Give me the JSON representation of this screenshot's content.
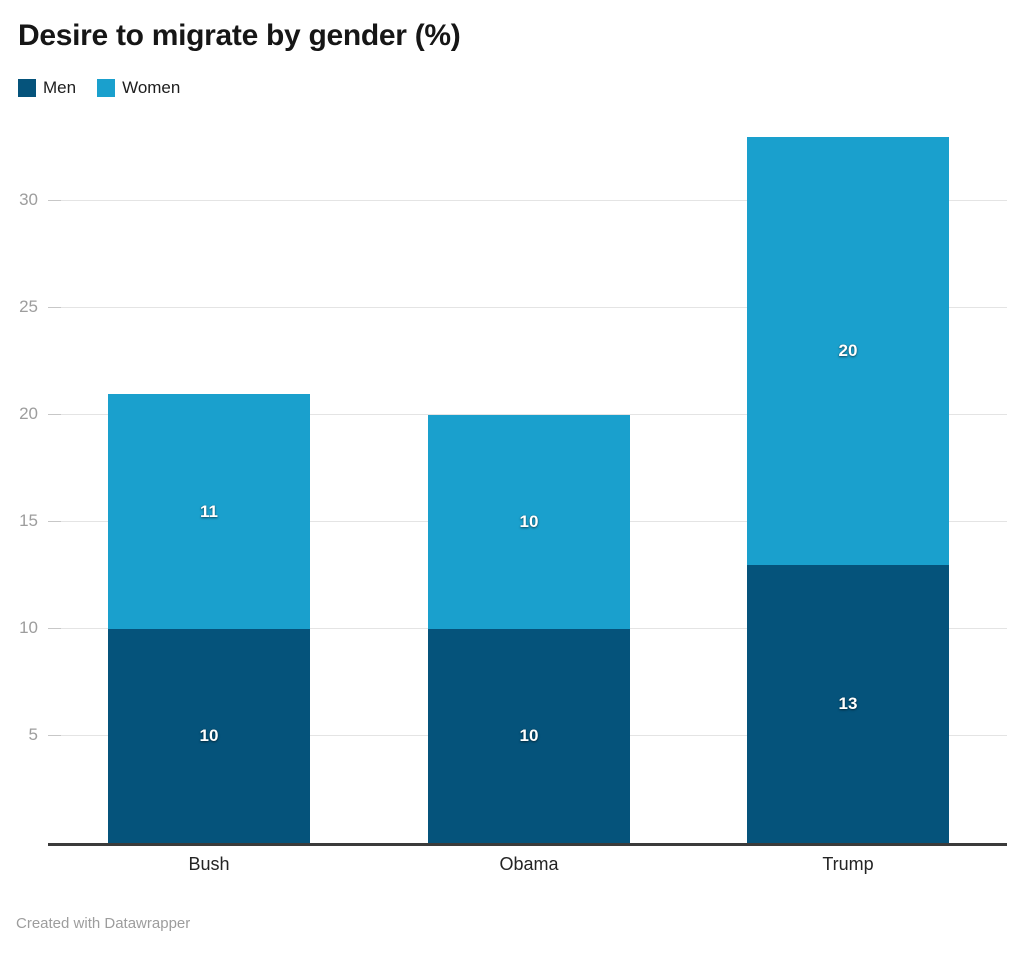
{
  "title": "Desire to migrate by gender (%)",
  "legend": {
    "items": [
      {
        "label": "Men",
        "color": "#05537b"
      },
      {
        "label": "Women",
        "color": "#1aa0cd"
      }
    ]
  },
  "footer": {
    "attribution": "Created with Datawrapper"
  },
  "chart_data": {
    "type": "bar",
    "stacked": true,
    "title": "Desire to migrate by gender (%)",
    "categories": [
      "Bush",
      "Obama",
      "Trump"
    ],
    "series": [
      {
        "name": "Men",
        "color": "#05537b",
        "values": [
          10,
          10,
          13
        ]
      },
      {
        "name": "Women",
        "color": "#1aa0cd",
        "values": [
          11,
          10,
          20
        ]
      }
    ],
    "value_labels_shown": true,
    "xlabel": "",
    "ylabel": "",
    "y_ticks": [
      5,
      10,
      15,
      20,
      25,
      30
    ],
    "ylim": [
      0,
      33
    ],
    "grid": true,
    "legend_position": "top-left",
    "colors": {
      "grid": "#e4e4e4",
      "tick": "#c7c7c7",
      "axis_line": "#3b3b3b",
      "tick_label": "#9d9d9d",
      "category_label": "#242424",
      "value_label": "#ffffff",
      "background": "#ffffff"
    }
  }
}
